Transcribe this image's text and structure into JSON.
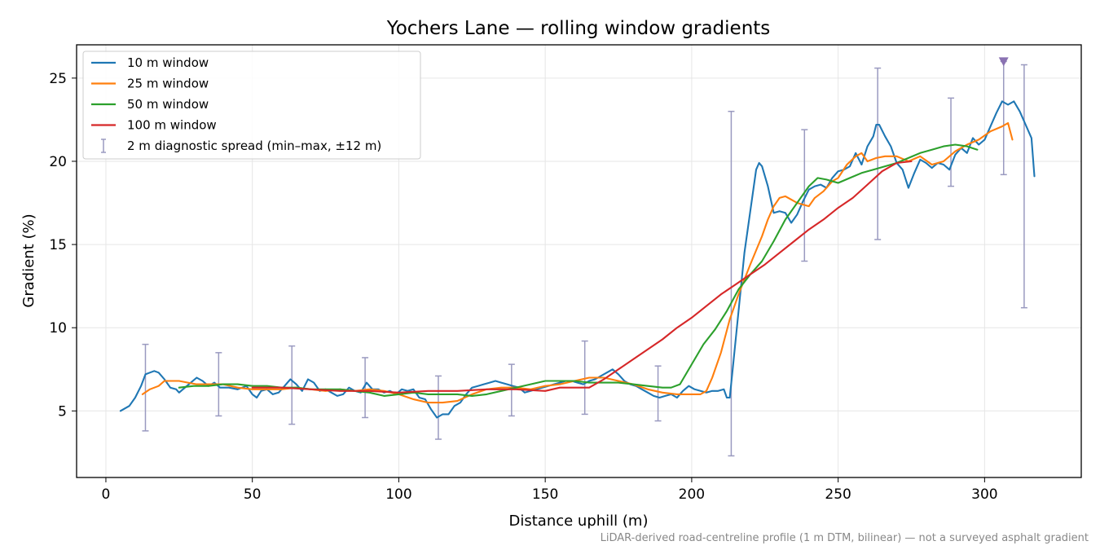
{
  "chart_data": {
    "type": "line",
    "title": "Yochers Lane — rolling window gradients",
    "xlabel": "Distance uphill (m)",
    "ylabel": "Gradient (%)",
    "xlim": [
      -10,
      333
    ],
    "ylim": [
      1,
      27
    ],
    "x_ticks": [
      0,
      50,
      100,
      150,
      200,
      250,
      300
    ],
    "y_ticks": [
      5,
      10,
      15,
      20,
      25
    ],
    "grid": true,
    "legend_position": "top-left",
    "footnote": "LiDAR-derived road-centreline profile (1 m DTM, bilinear) — not a surveyed asphalt gradient",
    "series": [
      {
        "name": "10 m window",
        "color": "#1f77b4",
        "x": [
          5,
          8,
          10,
          12,
          13.5,
          15,
          16.5,
          18,
          20,
          22,
          24,
          25,
          27,
          29,
          31,
          33,
          35,
          37,
          39,
          42,
          45,
          48,
          50,
          51.5,
          53,
          55,
          57,
          59,
          61,
          63,
          65,
          67,
          69,
          71,
          73,
          75,
          77,
          79,
          81,
          83,
          85,
          87,
          89,
          91,
          93,
          95,
          97,
          99,
          101,
          103,
          105,
          107,
          109,
          111,
          113,
          115,
          117,
          119,
          121,
          123,
          125,
          127,
          129,
          131,
          133,
          135,
          137,
          139,
          141,
          143,
          145,
          147,
          149,
          151,
          153,
          155,
          157,
          159,
          161,
          163,
          165,
          167,
          169,
          171,
          173,
          175,
          177,
          179,
          181,
          183,
          185,
          187,
          189,
          191,
          193,
          195,
          197,
          199,
          201,
          203,
          205,
          207,
          209,
          211,
          212,
          213,
          214,
          216,
          218,
          220,
          222,
          223,
          224,
          226,
          228,
          230,
          232,
          234,
          236,
          238,
          240,
          242,
          244,
          246,
          248,
          250,
          252,
          254,
          256,
          258,
          260,
          262,
          263,
          264,
          266,
          268,
          270,
          272,
          274,
          276,
          278,
          280,
          282,
          284,
          286,
          288,
          290,
          292,
          294,
          296,
          298,
          300,
          302,
          304,
          306,
          307,
          308,
          310,
          312,
          314,
          316,
          317
        ],
        "y": [
          5.0,
          5.3,
          5.8,
          6.5,
          7.2,
          7.3,
          7.4,
          7.3,
          6.9,
          6.4,
          6.3,
          6.1,
          6.4,
          6.7,
          7.0,
          6.8,
          6.5,
          6.7,
          6.4,
          6.4,
          6.3,
          6.5,
          6.0,
          5.8,
          6.2,
          6.3,
          6.0,
          6.1,
          6.5,
          6.9,
          6.6,
          6.2,
          6.9,
          6.7,
          6.2,
          6.3,
          6.1,
          5.9,
          6.0,
          6.4,
          6.2,
          6.1,
          6.7,
          6.3,
          6.3,
          6.1,
          6.2,
          6.0,
          6.3,
          6.2,
          6.3,
          5.8,
          5.7,
          5.1,
          4.6,
          4.8,
          4.8,
          5.3,
          5.5,
          6.0,
          6.4,
          6.5,
          6.6,
          6.7,
          6.8,
          6.7,
          6.6,
          6.5,
          6.4,
          6.1,
          6.2,
          6.3,
          6.4,
          6.5,
          6.6,
          6.7,
          6.8,
          6.8,
          6.7,
          6.6,
          6.8,
          6.9,
          7.1,
          7.3,
          7.5,
          7.2,
          6.8,
          6.6,
          6.5,
          6.3,
          6.1,
          5.9,
          5.8,
          5.9,
          6.0,
          5.8,
          6.2,
          6.5,
          6.3,
          6.2,
          6.1,
          6.2,
          6.2,
          6.3,
          5.8,
          5.8,
          7.5,
          11.0,
          14.5,
          17.0,
          19.5,
          19.9,
          19.7,
          18.5,
          16.9,
          17.0,
          16.9,
          16.3,
          16.8,
          17.6,
          18.3,
          18.5,
          18.6,
          18.4,
          19.0,
          19.4,
          19.5,
          19.7,
          20.5,
          19.8,
          20.9,
          21.5,
          22.2,
          22.2,
          21.5,
          20.9,
          19.9,
          19.5,
          18.4,
          19.3,
          20.1,
          19.9,
          19.6,
          19.9,
          19.8,
          19.5,
          20.4,
          20.8,
          20.5,
          21.4,
          21.0,
          21.3,
          22.1,
          22.9,
          23.6,
          23.5,
          23.4,
          23.6,
          23.0,
          22.2,
          21.4,
          19.1
        ]
      },
      {
        "name": "25 m window",
        "color": "#ff7f0e",
        "x": [
          12.5,
          15,
          18,
          20,
          22,
          25,
          28,
          31,
          35,
          40,
          45,
          50,
          55,
          60,
          65,
          70,
          75,
          80,
          85,
          90,
          95,
          100,
          105,
          110,
          115,
          120,
          125,
          130,
          135,
          140,
          145,
          150,
          155,
          160,
          165,
          170,
          175,
          180,
          185,
          190,
          195,
          200,
          203,
          205,
          207,
          210,
          213,
          216,
          220,
          224,
          226,
          228,
          230,
          232,
          234,
          236,
          238,
          240,
          242,
          245,
          248,
          250,
          253,
          256,
          258,
          260,
          263,
          266,
          270,
          274,
          278,
          282,
          286,
          290,
          294,
          298,
          302,
          306,
          308,
          309.5
        ],
        "y": [
          6.0,
          6.3,
          6.5,
          6.8,
          6.8,
          6.8,
          6.7,
          6.6,
          6.6,
          6.6,
          6.4,
          6.3,
          6.3,
          6.3,
          6.4,
          6.3,
          6.2,
          6.3,
          6.2,
          6.3,
          6.2,
          6.0,
          5.7,
          5.5,
          5.5,
          5.6,
          6.0,
          6.3,
          6.4,
          6.4,
          6.3,
          6.5,
          6.6,
          6.8,
          7.0,
          7.0,
          6.8,
          6.6,
          6.3,
          6.1,
          6.0,
          6.0,
          6.0,
          6.2,
          7.0,
          8.5,
          10.5,
          12.0,
          13.8,
          15.5,
          16.5,
          17.3,
          17.8,
          17.9,
          17.7,
          17.5,
          17.4,
          17.3,
          17.8,
          18.2,
          18.8,
          19.0,
          19.8,
          20.3,
          20.5,
          20.0,
          20.2,
          20.3,
          20.3,
          20.0,
          20.3,
          19.8,
          20.0,
          20.6,
          21.0,
          21.3,
          21.8,
          22.1,
          22.3,
          21.3
        ]
      },
      {
        "name": "50 m window",
        "color": "#2ca02c",
        "x": [
          25,
          30,
          35,
          40,
          45,
          50,
          55,
          60,
          65,
          70,
          75,
          80,
          85,
          90,
          95,
          100,
          105,
          110,
          115,
          120,
          125,
          130,
          135,
          140,
          145,
          150,
          155,
          160,
          165,
          170,
          175,
          180,
          185,
          190,
          193,
          196,
          200,
          204,
          208,
          212,
          216,
          220,
          224,
          228,
          232,
          236,
          240,
          243,
          246,
          250,
          254,
          258,
          262,
          266,
          270,
          274,
          278,
          282,
          286,
          290,
          294,
          297.5
        ],
        "y": [
          6.4,
          6.5,
          6.5,
          6.6,
          6.6,
          6.5,
          6.5,
          6.4,
          6.4,
          6.3,
          6.3,
          6.3,
          6.2,
          6.1,
          5.9,
          6.0,
          6.1,
          6.0,
          6.0,
          6.0,
          5.9,
          6.0,
          6.2,
          6.4,
          6.6,
          6.8,
          6.8,
          6.8,
          6.7,
          6.7,
          6.7,
          6.6,
          6.5,
          6.4,
          6.4,
          6.6,
          7.8,
          9.0,
          9.9,
          11.0,
          12.3,
          13.2,
          14.0,
          15.2,
          16.5,
          17.5,
          18.5,
          19.0,
          18.9,
          18.7,
          19.0,
          19.3,
          19.5,
          19.7,
          19.9,
          20.2,
          20.5,
          20.7,
          20.9,
          21.0,
          20.9,
          20.7
        ]
      },
      {
        "name": "100 m window",
        "color": "#d62728",
        "x": [
          50,
          60,
          70,
          80,
          90,
          100,
          110,
          120,
          130,
          140,
          150,
          155,
          160,
          165,
          170,
          175,
          180,
          185,
          190,
          195,
          200,
          205,
          210,
          215,
          220,
          225,
          230,
          235,
          240,
          245,
          250,
          255,
          260,
          265,
          270,
          275
        ],
        "y": [
          6.4,
          6.4,
          6.3,
          6.2,
          6.2,
          6.1,
          6.2,
          6.2,
          6.3,
          6.3,
          6.2,
          6.4,
          6.4,
          6.4,
          6.9,
          7.5,
          8.1,
          8.7,
          9.3,
          10.0,
          10.6,
          11.3,
          12.0,
          12.6,
          13.2,
          13.8,
          14.5,
          15.2,
          15.9,
          16.5,
          17.2,
          17.8,
          18.6,
          19.4,
          19.9,
          20.0
        ]
      }
    ],
    "diagnostic_spread": {
      "name": "2 m diagnostic spread (min–max, ±12 m)",
      "color": "#9a9ac0",
      "x": [
        13.5,
        38.5,
        63.5,
        88.5,
        113.5,
        138.5,
        163.5,
        188.5,
        213.5,
        238.5,
        263.5,
        288.5,
        306.5,
        313.5
      ],
      "min": [
        3.8,
        4.7,
        4.2,
        4.6,
        3.3,
        4.7,
        4.8,
        4.4,
        2.3,
        14.0,
        15.3,
        18.5,
        19.2,
        11.2
      ],
      "max": [
        9.0,
        8.5,
        8.9,
        8.2,
        7.1,
        7.8,
        9.2,
        7.7,
        23.0,
        21.9,
        25.6,
        23.8,
        26.0,
        25.8
      ]
    },
    "max_marker": {
      "x": 306.5,
      "y": 26.0,
      "color": "#8a72b2"
    }
  }
}
